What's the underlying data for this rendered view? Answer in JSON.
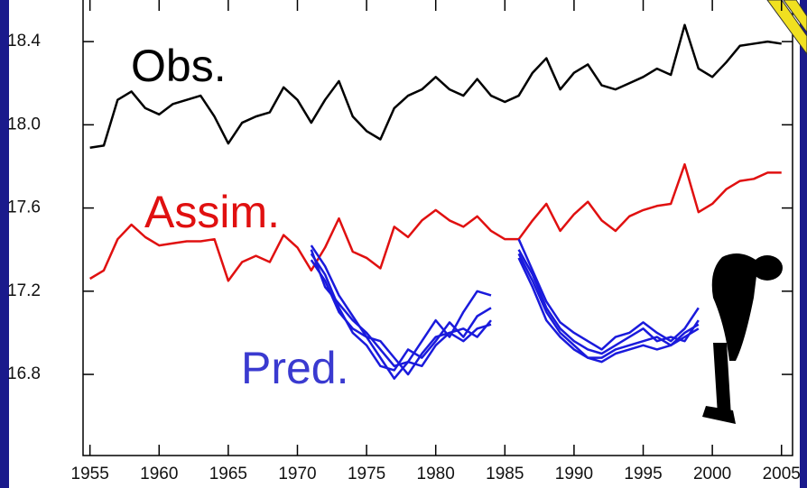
{
  "chart_data": {
    "type": "line",
    "annotations": [
      {
        "text": "Obs.",
        "color": "#000000"
      },
      {
        "text": "Assim.",
        "color": "#e01010"
      },
      {
        "text": "Pred.",
        "color": "#3a3ad0"
      }
    ],
    "x": [
      1955,
      1956,
      1957,
      1958,
      1959,
      1960,
      1961,
      1962,
      1963,
      1964,
      1965,
      1966,
      1967,
      1968,
      1969,
      1970,
      1971,
      1972,
      1973,
      1974,
      1975,
      1976,
      1977,
      1978,
      1979,
      1980,
      1981,
      1982,
      1983,
      1984,
      1985,
      1986,
      1987,
      1988,
      1989,
      1990,
      1991,
      1992,
      1993,
      1994,
      1995,
      1996,
      1997,
      1998,
      1999,
      2000,
      2001,
      2002,
      2003,
      2004,
      2005
    ],
    "series": [
      {
        "color": "#000000",
        "values": [
          17.89,
          17.9,
          18.12,
          18.16,
          18.08,
          18.05,
          18.1,
          18.12,
          18.14,
          18.04,
          17.91,
          18.01,
          18.04,
          18.06,
          18.18,
          18.12,
          18.01,
          18.12,
          18.21,
          18.04,
          17.97,
          17.93,
          18.08,
          18.14,
          18.17,
          18.23,
          18.17,
          18.14,
          18.22,
          18.14,
          18.11,
          18.14,
          18.25,
          18.32,
          18.17,
          18.25,
          18.29,
          18.19,
          18.17,
          18.2,
          18.23,
          18.27,
          18.24,
          18.48,
          18.27,
          18.23,
          18.3,
          18.38,
          18.39,
          18.4,
          18.39
        ]
      },
      {
        "color": "#e01010",
        "values": [
          17.26,
          17.3,
          17.45,
          17.52,
          17.46,
          17.42,
          17.43,
          17.44,
          17.44,
          17.45,
          17.25,
          17.34,
          17.37,
          17.34,
          17.47,
          17.41,
          17.3,
          17.41,
          17.55,
          17.39,
          17.36,
          17.31,
          17.51,
          17.46,
          17.54,
          17.59,
          17.54,
          17.51,
          17.56,
          17.49,
          17.45,
          17.45,
          17.54,
          17.62,
          17.49,
          17.57,
          17.63,
          17.54,
          17.49,
          17.56,
          17.59,
          17.61,
          17.62,
          17.81,
          17.58,
          17.62,
          17.69,
          17.73,
          17.74,
          17.77,
          17.77
        ]
      },
      {
        "color": "#1a1adc",
        "x": [
          1971,
          1972,
          1973,
          1974,
          1975,
          1976,
          1977,
          1978,
          1979,
          1980,
          1981,
          1982,
          1983,
          1984
        ],
        "values": [
          17.42,
          17.32,
          17.18,
          17.08,
          16.98,
          16.88,
          16.78,
          16.86,
          16.96,
          17.06,
          16.98,
          17.1,
          17.2,
          17.18
        ]
      },
      {
        "color": "#1a1adc",
        "x": [
          1971,
          1972,
          1973,
          1974,
          1975,
          1976,
          1977,
          1978,
          1979,
          1980,
          1981,
          1982,
          1983,
          1984
        ],
        "values": [
          17.38,
          17.28,
          17.12,
          17.0,
          16.94,
          16.84,
          16.82,
          16.92,
          16.88,
          16.96,
          17.05,
          16.98,
          17.08,
          17.12
        ]
      },
      {
        "color": "#1a1adc",
        "x": [
          1971,
          1972,
          1973,
          1974,
          1975,
          1976,
          1977,
          1978,
          1979,
          1980,
          1981,
          1982,
          1983,
          1984
        ],
        "values": [
          17.35,
          17.25,
          17.1,
          17.02,
          16.98,
          16.96,
          16.88,
          16.8,
          16.9,
          16.98,
          17.0,
          17.02,
          16.98,
          17.06
        ]
      },
      {
        "color": "#1a1adc",
        "x": [
          1971,
          1972,
          1973,
          1974,
          1975,
          1976,
          1977,
          1978,
          1979,
          1980,
          1981,
          1982,
          1983,
          1984
        ],
        "values": [
          17.4,
          17.22,
          17.14,
          17.06,
          17.0,
          16.92,
          16.84,
          16.86,
          16.84,
          16.94,
          17.0,
          16.96,
          17.02,
          17.04
        ]
      },
      {
        "color": "#1a1adc",
        "x": [
          1986,
          1987,
          1988,
          1989,
          1990,
          1991,
          1992,
          1993,
          1994,
          1995,
          1996,
          1997,
          1998,
          1999
        ],
        "values": [
          17.45,
          17.3,
          17.15,
          17.05,
          17.0,
          16.96,
          16.92,
          16.98,
          17.0,
          17.05,
          17.0,
          16.96,
          17.02,
          17.12
        ]
      },
      {
        "color": "#1a1adc",
        "x": [
          1986,
          1987,
          1988,
          1989,
          1990,
          1991,
          1992,
          1993,
          1994,
          1995,
          1996,
          1997,
          1998,
          1999
        ],
        "values": [
          17.4,
          17.28,
          17.12,
          17.02,
          16.96,
          16.92,
          16.9,
          16.94,
          16.98,
          17.02,
          16.96,
          16.98,
          16.96,
          17.06
        ]
      },
      {
        "color": "#1a1adc",
        "x": [
          1986,
          1987,
          1988,
          1989,
          1990,
          1991,
          1992,
          1993,
          1994,
          1995,
          1996,
          1997,
          1998,
          1999
        ],
        "values": [
          17.38,
          17.25,
          17.1,
          17.0,
          16.94,
          16.88,
          16.88,
          16.92,
          16.94,
          16.96,
          16.98,
          16.94,
          17.0,
          17.04
        ]
      },
      {
        "color": "#1a1adc",
        "x": [
          1986,
          1987,
          1988,
          1989,
          1990,
          1991,
          1992,
          1993,
          1994,
          1995,
          1996,
          1997,
          1998,
          1999
        ],
        "values": [
          17.36,
          17.22,
          17.06,
          16.98,
          16.92,
          16.88,
          16.86,
          16.9,
          16.92,
          16.94,
          16.92,
          16.94,
          16.98,
          17.02
        ]
      }
    ],
    "xlim": [
      1954.5,
      2005.8
    ],
    "xticks": [
      1955,
      1960,
      1965,
      1970,
      1975,
      1980,
      1985,
      1990,
      1995,
      2000,
      2005
    ],
    "ylim": [
      16.41,
      18.6
    ],
    "yticks": [
      16.8,
      17.2,
      17.6,
      {
        "value": 18,
        "label": "18.0"
      },
      18.4
    ]
  }
}
